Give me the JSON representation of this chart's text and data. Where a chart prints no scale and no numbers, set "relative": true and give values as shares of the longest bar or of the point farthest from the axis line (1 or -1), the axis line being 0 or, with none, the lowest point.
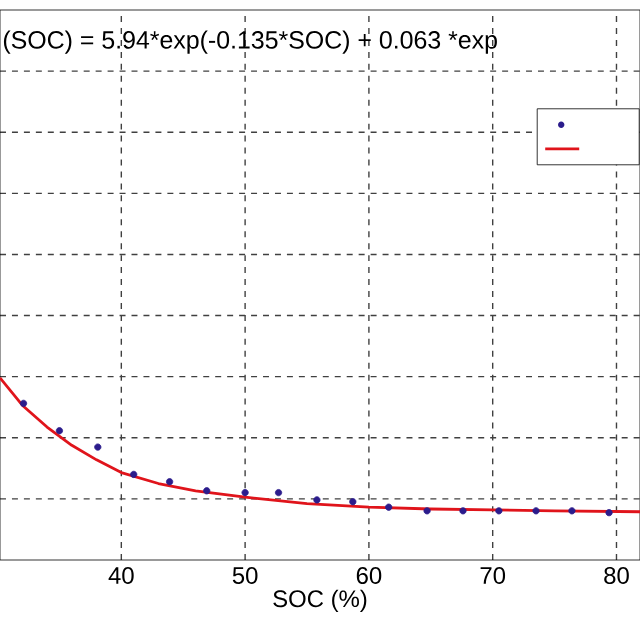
{
  "chart_data": {
    "type": "scatter",
    "title": "(SOC) = 5.94*exp(-0.135*SOC) + 0.063 *exp",
    "xlabel": "SOC (%)",
    "relative": true,
    "xlim": [
      30.2,
      81.9
    ],
    "xticks": [
      40,
      50,
      60,
      70,
      80
    ],
    "grid": true,
    "series": [
      {
        "marker": "circle",
        "color": "#2b1c8c",
        "x": [
          32.1,
          35.0,
          38.1,
          41.0,
          43.9,
          46.9,
          50.0,
          52.7,
          55.8,
          58.7,
          61.6,
          64.7,
          67.6,
          70.5,
          73.5,
          76.4,
          79.4
        ],
        "values": [
          0.86,
          0.71,
          0.62,
          0.47,
          0.43,
          0.38,
          0.37,
          0.37,
          0.33,
          0.32,
          0.29,
          0.27,
          0.27,
          0.27,
          0.27,
          0.27,
          0.26
        ]
      },
      {
        "type": "line",
        "marker": "none",
        "line_style": "solid",
        "color": "#e0141b",
        "x": [
          30.2,
          32,
          34,
          36,
          38,
          40,
          43,
          46,
          50,
          55,
          60,
          65,
          70,
          75,
          81.9
        ],
        "values": [
          1.0,
          0.85,
          0.73,
          0.63,
          0.55,
          0.48,
          0.42,
          0.38,
          0.345,
          0.31,
          0.29,
          0.28,
          0.275,
          0.27,
          0.265
        ]
      }
    ]
  }
}
